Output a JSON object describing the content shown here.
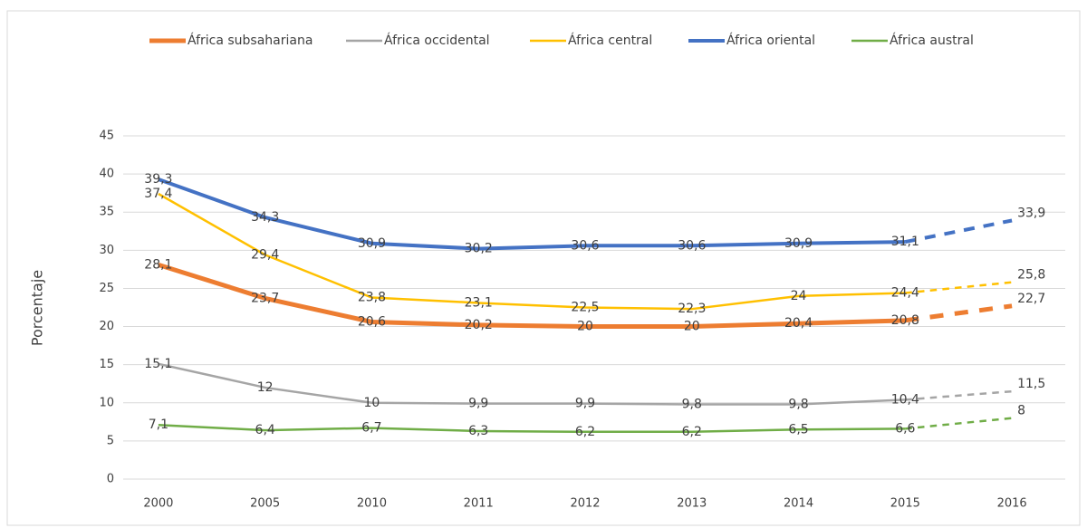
{
  "chart_data": {
    "type": "line",
    "y_label": "Porcentaje",
    "categories": [
      "2000",
      "2005",
      "2010",
      "2011",
      "2012",
      "2013",
      "2014",
      "2015",
      "2016"
    ],
    "series": [
      {
        "name": "África subsahariana",
        "color": "#ed7d31",
        "width": 5,
        "values": [
          28.1,
          23.7,
          20.6,
          20.2,
          20,
          20,
          20.4,
          20.8,
          22.7
        ],
        "value_labels": [
          "28,1",
          "23,7",
          "20,6",
          "20,2",
          "20",
          "20",
          "20,4",
          "20,8",
          "22,7"
        ]
      },
      {
        "name": "África occidental",
        "color": "#a5a5a5",
        "width": 2.5,
        "values": [
          15.1,
          12,
          10,
          9.9,
          9.9,
          9.8,
          9.8,
          10.4,
          11.5
        ],
        "value_labels": [
          "15,1",
          "12",
          "10",
          "9,9",
          "9,9",
          "9,8",
          "9,8",
          "10,4",
          "11,5"
        ]
      },
      {
        "name": "África central",
        "color": "#ffc000",
        "width": 2.5,
        "values": [
          37.4,
          29.4,
          23.8,
          23.1,
          22.5,
          22.3,
          24,
          24.4,
          25.8
        ],
        "value_labels": [
          "37,4",
          "29,4",
          "23,8",
          "23,1",
          "22,5",
          "22,3",
          "24",
          "24,4",
          "25,8"
        ]
      },
      {
        "name": "África oriental",
        "color": "#4472c4",
        "width": 4,
        "values": [
          39.3,
          34.3,
          30.9,
          30.2,
          30.6,
          30.6,
          30.9,
          31.1,
          33.9
        ],
        "value_labels": [
          "39,3",
          "34,3",
          "30,9",
          "30,2",
          "30,6",
          "30,6",
          "30,9",
          "31,1",
          "33,9"
        ]
      },
      {
        "name": "África austral",
        "color": "#70ad47",
        "width": 2.5,
        "values": [
          7.1,
          6.4,
          6.7,
          6.3,
          6.2,
          6.2,
          6.5,
          6.6,
          8
        ],
        "value_labels": [
          "7,1",
          "6,4",
          "6,7",
          "6,3",
          "6,2",
          "6,2",
          "6,5",
          "6,6",
          "8"
        ]
      }
    ],
    "dashed_last_segment": true,
    "ylim": [
      0,
      45
    ],
    "yticks": [
      0,
      5,
      10,
      15,
      20,
      25,
      30,
      35,
      40,
      45
    ],
    "grid": true,
    "legend": "top"
  }
}
